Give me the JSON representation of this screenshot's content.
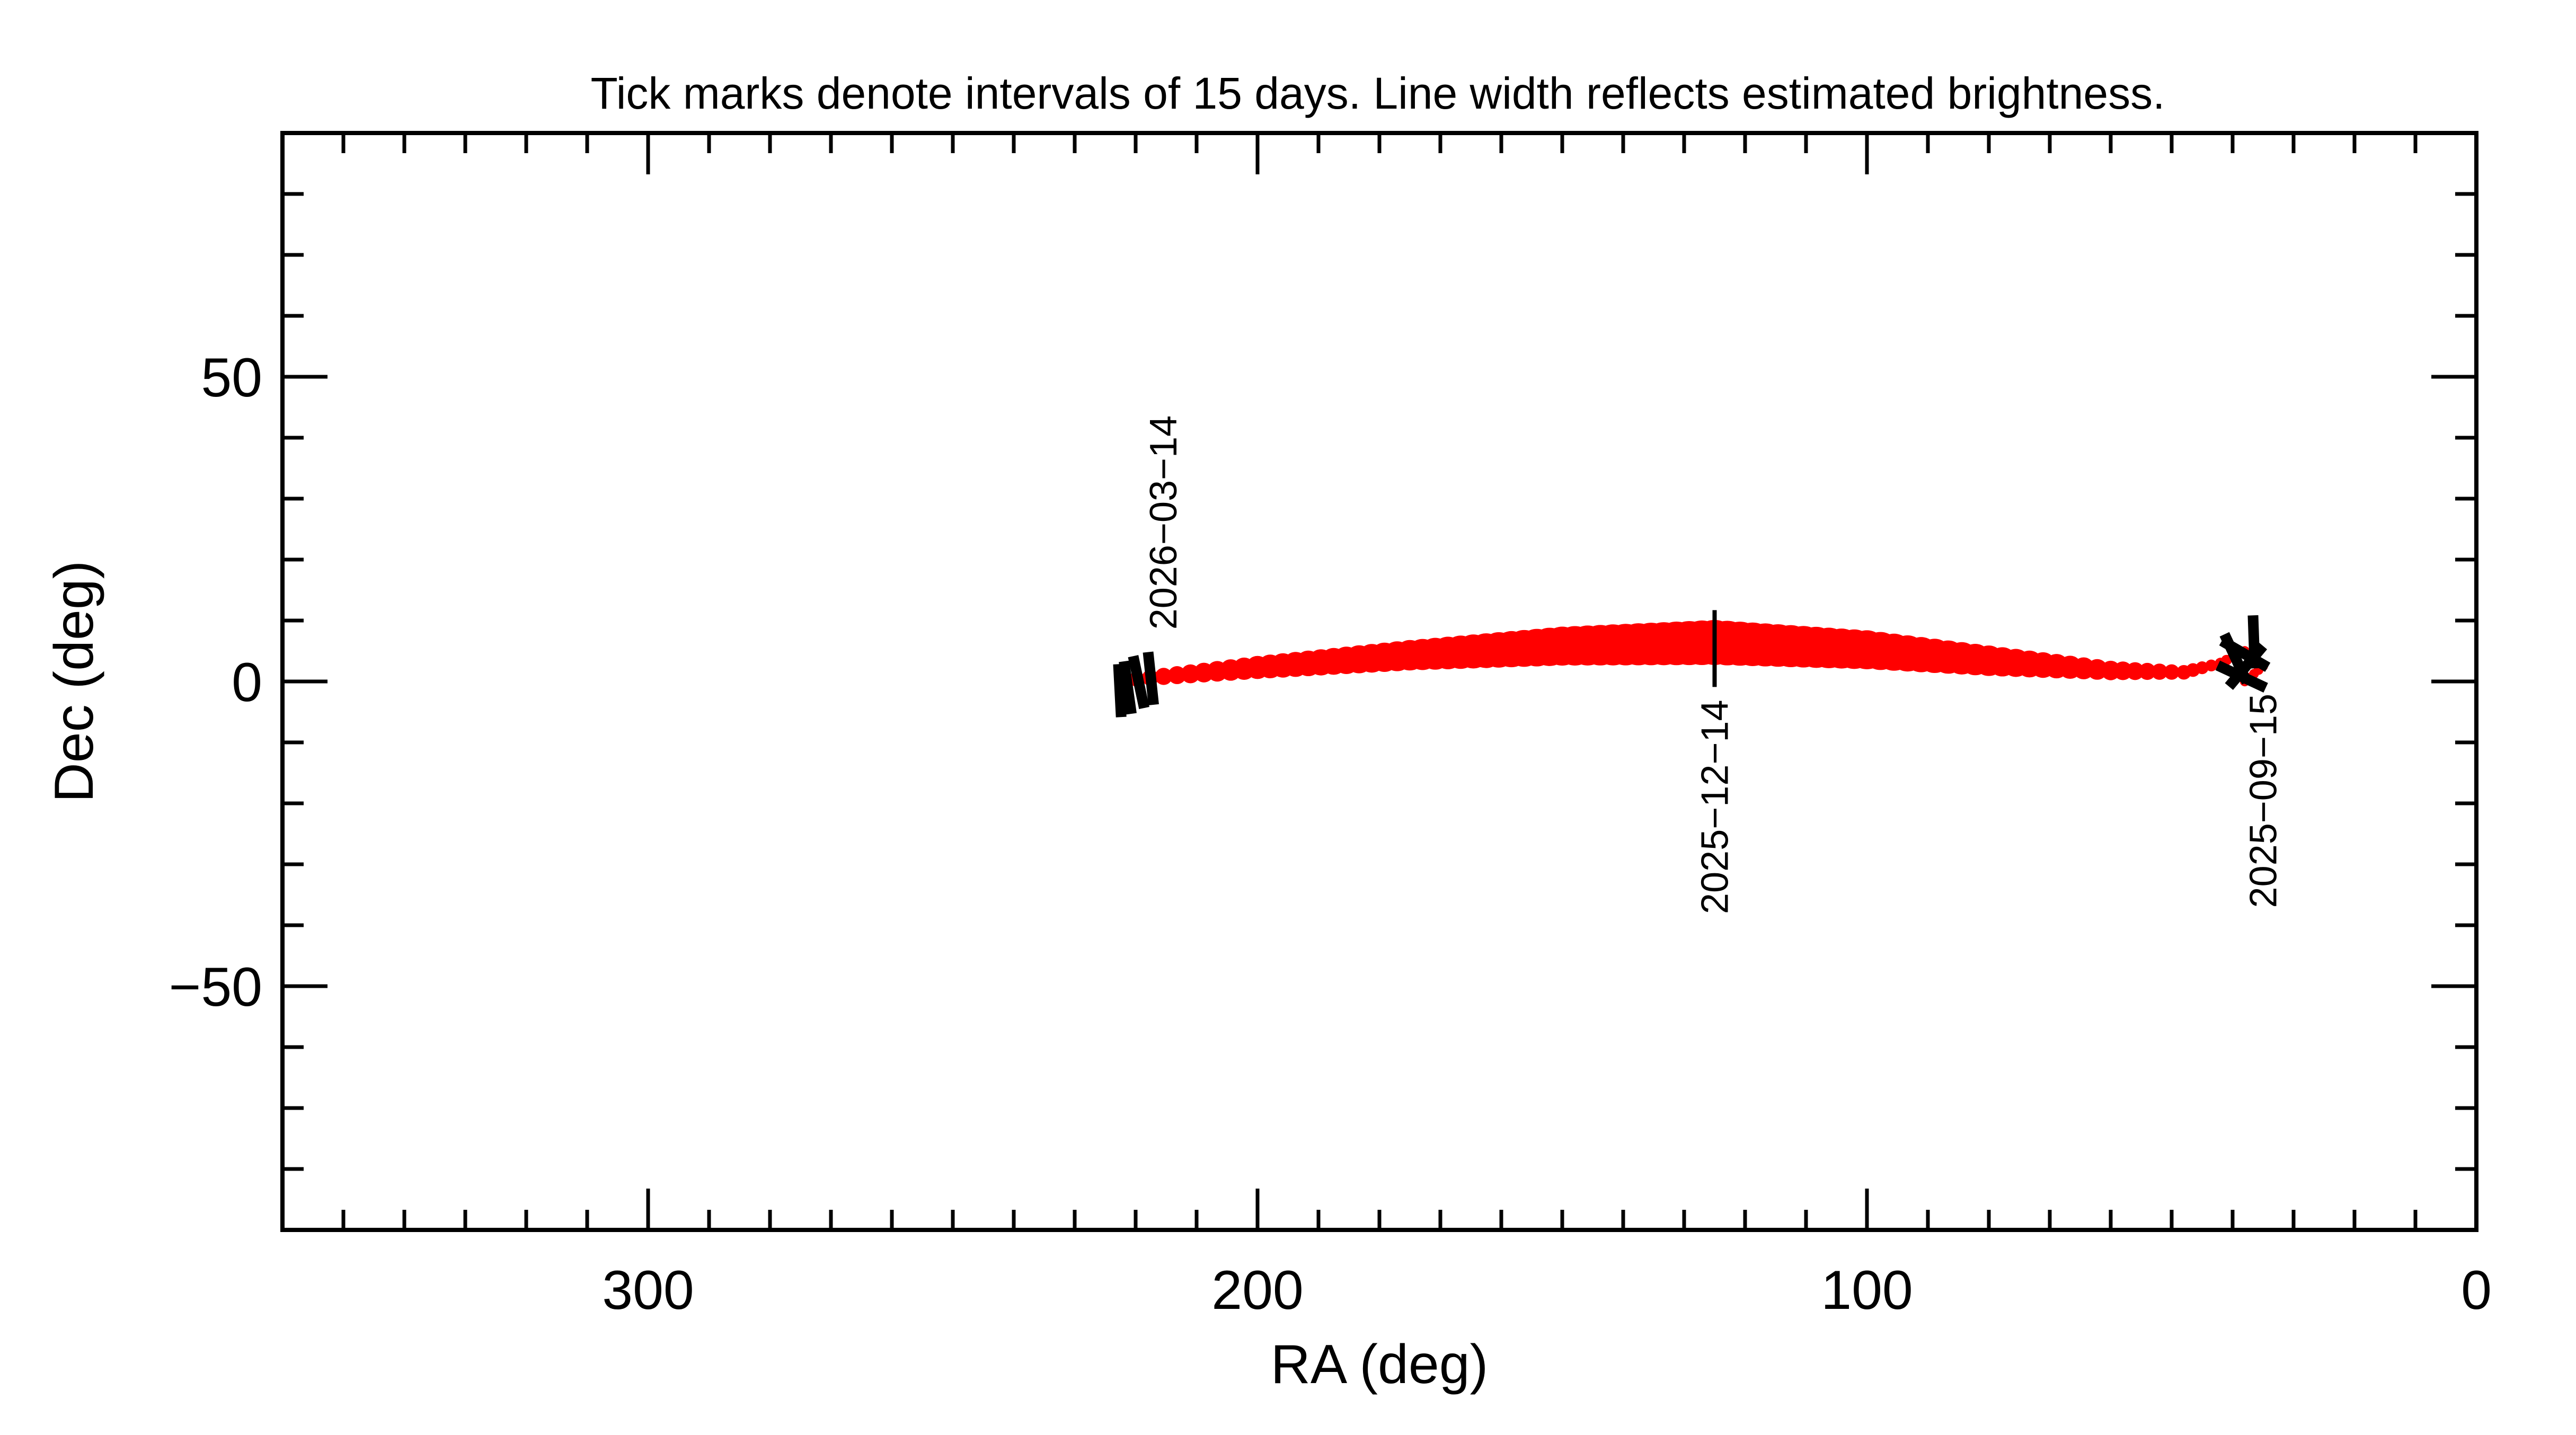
{
  "chart_data": {
    "type": "line",
    "title": "Tick marks denote intervals of 15 days.  Line width reflects estimated brightness.",
    "xlabel": "RA (deg)",
    "ylabel": "Dec (deg)",
    "xlim": [
      360,
      0
    ],
    "ylim": [
      -90,
      90
    ],
    "x_ticks": [
      300,
      200,
      100,
      0
    ],
    "x_tick_labels": [
      "300",
      "200",
      "100",
      "0"
    ],
    "y_ticks": [
      50,
      0,
      -50
    ],
    "y_tick_labels": [
      "50",
      "0",
      "−50"
    ],
    "minor_tick_step": 10,
    "grid": false,
    "line_color": "#ff0000",
    "tick_mark_color": "#000000",
    "series": [
      {
        "points": [
          {
            "ra": 38,
            "dec": 0.0,
            "width": 1.6
          },
          {
            "ra": 35,
            "dec": 2.5,
            "width": 1.6
          },
          {
            "ra": 38,
            "dec": 5.0,
            "width": 1.6
          },
          {
            "ra": 42,
            "dec": 3.0,
            "width": 1.8
          },
          {
            "ra": 48,
            "dec": 1.5,
            "width": 2.4
          },
          {
            "ra": 60,
            "dec": 1.8,
            "width": 3.2
          },
          {
            "ra": 80,
            "dec": 3.4,
            "width": 5.0
          },
          {
            "ra": 100,
            "dec": 5.2,
            "width": 6.4
          },
          {
            "ra": 125,
            "dec": 6.4,
            "width": 7.4
          },
          {
            "ra": 150,
            "dec": 5.8,
            "width": 6.4
          },
          {
            "ra": 175,
            "dec": 4.3,
            "width": 5.0
          },
          {
            "ra": 200,
            "dec": 2.3,
            "width": 3.8
          },
          {
            "ra": 222,
            "dec": 0.2,
            "width": 2.4
          }
        ]
      }
    ],
    "tick_marks": [
      {
        "ra": 38.5,
        "dec": 0.8,
        "angle": 65
      },
      {
        "ra": 39.5,
        "dec": 3.8,
        "angle": 25
      },
      {
        "ra": 38.0,
        "dec": 4.5,
        "angle": 60
      },
      {
        "ra": 37.8,
        "dec": 2.5,
        "angle": -40
      },
      {
        "ra": 36.5,
        "dec": 6.5,
        "angle": 2
      },
      {
        "ra": 125,
        "dec": 5.4,
        "angle": 0
      },
      {
        "ra": 217.5,
        "dec": 0.5,
        "angle": 6
      },
      {
        "ra": 219.5,
        "dec": -0.1,
        "angle": 12
      },
      {
        "ra": 221.3,
        "dec": -1.0,
        "angle": 8
      },
      {
        "ra": 222.6,
        "dec": -1.5,
        "angle": 3
      }
    ],
    "annotations": [
      {
        "text": "2026−03−14",
        "ra": 215.5,
        "dec": 8.5,
        "anchor": "start"
      },
      {
        "text": "2025−12−14",
        "ra": 125,
        "dec": -3.0,
        "anchor": "end"
      },
      {
        "text": "2025−09−15",
        "ra": 35,
        "dec": -2.0,
        "anchor": "end"
      }
    ]
  }
}
